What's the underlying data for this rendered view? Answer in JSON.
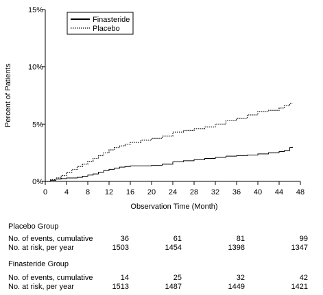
{
  "chart_data": {
    "type": "line",
    "xlabel": "Observation Time (Month)",
    "ylabel": "Percent of Patients",
    "xlim": [
      0,
      48
    ],
    "ylim": [
      0,
      15
    ],
    "x_ticks": [
      0,
      4,
      8,
      12,
      16,
      20,
      24,
      28,
      32,
      36,
      40,
      44,
      48
    ],
    "y_ticks": [
      {
        "value": 0,
        "label": "0%"
      },
      {
        "value": 5,
        "label": "5%"
      },
      {
        "value": 10,
        "label": "10%"
      },
      {
        "value": 15,
        "label": "15%"
      }
    ],
    "legend_position": "top-left",
    "grid": false,
    "series": [
      {
        "name": "Finasteride",
        "style": "solid",
        "color": "#000000",
        "x": [
          0,
          1,
          2,
          3,
          4,
          5,
          6,
          7,
          8,
          9,
          10,
          11,
          12,
          13,
          14,
          15,
          16,
          18,
          20,
          22,
          24,
          26,
          28,
          30,
          32,
          34,
          36,
          38,
          40,
          42,
          44,
          45,
          46,
          46.5
        ],
        "y": [
          0,
          0.1,
          0.2,
          0.25,
          0.3,
          0.3,
          0.35,
          0.45,
          0.55,
          0.65,
          0.8,
          0.95,
          1.05,
          1.15,
          1.25,
          1.3,
          1.35,
          1.35,
          1.4,
          1.5,
          1.7,
          1.8,
          1.9,
          2.0,
          2.1,
          2.2,
          2.25,
          2.3,
          2.4,
          2.5,
          2.6,
          2.7,
          2.95,
          3.0
        ]
      },
      {
        "name": "Placebo",
        "style": "dotted",
        "color": "#000000",
        "x": [
          0,
          1,
          2,
          3,
          4,
          5,
          6,
          7,
          8,
          9,
          10,
          11,
          12,
          13,
          14,
          15,
          16,
          18,
          20,
          22,
          24,
          26,
          28,
          30,
          32,
          34,
          36,
          38,
          40,
          42,
          44,
          45,
          46,
          46.5
        ],
        "y": [
          0,
          0.15,
          0.3,
          0.5,
          0.8,
          1.05,
          1.3,
          1.5,
          1.75,
          2.0,
          2.25,
          2.5,
          2.75,
          2.95,
          3.1,
          3.25,
          3.4,
          3.6,
          3.75,
          3.95,
          4.3,
          4.45,
          4.6,
          4.75,
          5.0,
          5.3,
          5.5,
          5.8,
          6.1,
          6.2,
          6.4,
          6.6,
          6.8,
          6.8
        ]
      }
    ]
  },
  "risk_table": {
    "placebo": {
      "title": "Placebo Group",
      "rows": [
        {
          "label": "No. of events, cumulative",
          "values": [
            "36",
            "61",
            "81",
            "99"
          ]
        },
        {
          "label": "No. at risk, per year",
          "values": [
            "1503",
            "1454",
            "1398",
            "1347"
          ]
        }
      ]
    },
    "finasteride": {
      "title": "Finasteride Group",
      "rows": [
        {
          "label": "No. of events, cumulative",
          "values": [
            "14",
            "25",
            "32",
            "42"
          ]
        },
        {
          "label": "No. at risk, per year",
          "values": [
            "1513",
            "1487",
            "1449",
            "1421"
          ]
        }
      ]
    }
  }
}
